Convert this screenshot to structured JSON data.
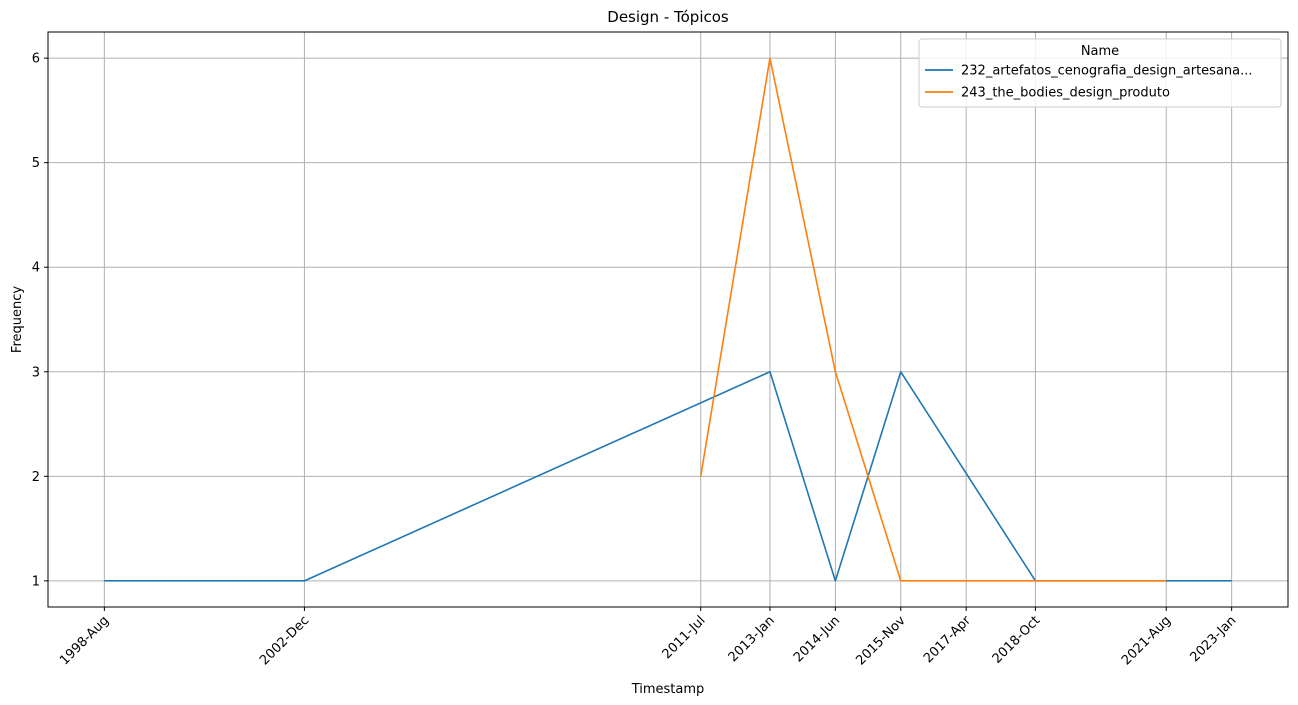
{
  "chart_data": {
    "type": "line",
    "title": "Design - Tópicos",
    "xlabel": "Timestamp",
    "ylabel": "Frequency",
    "x_ticks": [
      "1998-Aug",
      "2002-Dec",
      "2011-Jul",
      "2013-Jan",
      "2014-Jun",
      "2015-Nov",
      "2017-Apr",
      "2018-Oct",
      "2021-Aug",
      "2023-Jan"
    ],
    "y_ticks": [
      1,
      2,
      3,
      4,
      5,
      6
    ],
    "ylim": [
      0.75,
      6.25
    ],
    "grid": true,
    "legend": {
      "title": "Name",
      "placement": "top-right"
    },
    "series": [
      {
        "name": "232_artefatos_cenografia_design_artesana...",
        "color": "#1f77b4",
        "points": [
          {
            "x": "1998-Aug",
            "y": 1
          },
          {
            "x": "2002-Dec",
            "y": 1
          },
          {
            "x": "2013-Jan",
            "y": 3
          },
          {
            "x": "2014-Jun",
            "y": 1
          },
          {
            "x": "2015-Nov",
            "y": 3
          },
          {
            "x": "2018-Oct",
            "y": 1
          },
          {
            "x": "2021-Aug",
            "y": 1
          },
          {
            "x": "2023-Jan",
            "y": 1
          }
        ]
      },
      {
        "name": "243_the_bodies_design_produto",
        "color": "#ff7f0e",
        "points": [
          {
            "x": "2011-Jul",
            "y": 2
          },
          {
            "x": "2013-Jan",
            "y": 6
          },
          {
            "x": "2014-Jun",
            "y": 3
          },
          {
            "x": "2015-Nov",
            "y": 1
          },
          {
            "x": "2018-Oct",
            "y": 1
          },
          {
            "x": "2021-Aug",
            "y": 1
          }
        ]
      }
    ]
  }
}
